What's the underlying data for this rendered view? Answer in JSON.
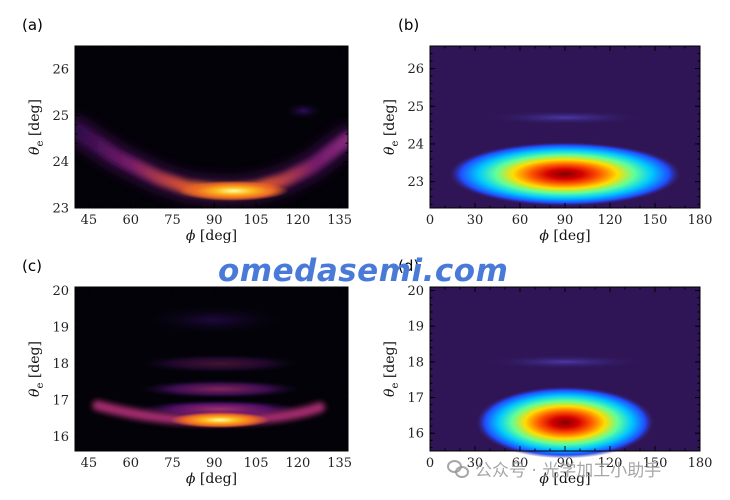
{
  "chart_data": [
    {
      "panel": "(a)",
      "type": "heatmap",
      "colormap": "inferno",
      "xlabel_sym": "ϕ",
      "xlabel_unit": " [deg]",
      "ylabel_sym": "θ",
      "ylabel_sub": "e",
      "ylabel_unit": " [deg]",
      "xlim": [
        40,
        138
      ],
      "ylim": [
        23,
        26.5
      ],
      "xticks": [
        45,
        60,
        75,
        90,
        105,
        120,
        135
      ],
      "yticks": [
        23,
        24,
        25,
        26
      ],
      "ridge": {
        "x": [
          40,
          55,
          70,
          80,
          90,
          97,
          105,
          115,
          125,
          138
        ],
        "y": [
          24.7,
          24.1,
          23.65,
          23.45,
          23.38,
          23.37,
          23.42,
          23.6,
          23.9,
          24.5
        ]
      },
      "peak": {
        "x": 97,
        "y": 23.37
      }
    },
    {
      "panel": "(b)",
      "type": "heatmap",
      "colormap": "jet",
      "xlabel_sym": "ϕ",
      "xlabel_unit": " [deg]",
      "ylabel_sym": "θ",
      "ylabel_sub": "e",
      "ylabel_unit": " [deg]",
      "xlim": [
        0,
        180
      ],
      "ylim": [
        22.3,
        26.6
      ],
      "xticks": [
        0,
        30,
        60,
        90,
        120,
        150,
        180
      ],
      "yticks": [
        23,
        24,
        25,
        26
      ],
      "peak": {
        "x": 90,
        "y": 23.2
      },
      "secondary_band": {
        "y": 24.7
      }
    },
    {
      "panel": "(c)",
      "type": "heatmap",
      "colormap": "inferno",
      "xlabel_sym": "ϕ",
      "xlabel_unit": " [deg]",
      "ylabel_sym": "θ",
      "ylabel_sub": "e",
      "ylabel_unit": " [deg]",
      "xlim": [
        40,
        138
      ],
      "ylim": [
        15.6,
        20.1
      ],
      "xticks": [
        45,
        60,
        75,
        90,
        105,
        120,
        135
      ],
      "yticks": [
        16,
        17,
        18,
        19,
        20
      ],
      "peak": {
        "x": 92,
        "y": 16.45
      },
      "bands": [
        16.75,
        17.3,
        18.0
      ]
    },
    {
      "panel": "(d)",
      "type": "heatmap",
      "colormap": "jet",
      "xlabel_sym": "ϕ",
      "xlabel_unit": " [deg]",
      "ylabel_sym": "θ",
      "ylabel_sub": "e",
      "ylabel_unit": " [deg]",
      "xlim": [
        0,
        180
      ],
      "ylim": [
        15.5,
        20.1
      ],
      "xticks": [
        0,
        30,
        60,
        90,
        120,
        150,
        180
      ],
      "yticks": [
        16,
        17,
        18,
        19,
        20
      ],
      "peak": {
        "x": 90,
        "y": 16.3
      },
      "secondary_band": {
        "y": 18.0
      }
    }
  ],
  "watermark": "omedasemi.com",
  "wechat_text": "公众号 · 光学加工小助手"
}
